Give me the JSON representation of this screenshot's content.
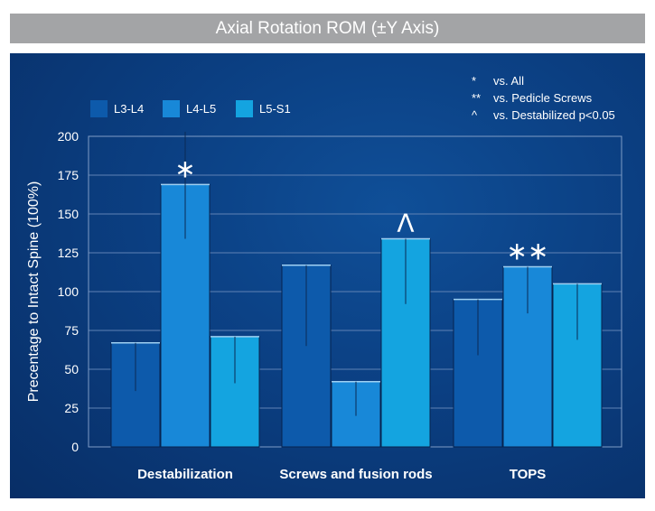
{
  "chart_data": {
    "type": "bar",
    "title": "Axial Rotation ROM (±Y Axis)",
    "ylabel": "Precentage to Intact Spine (100%)",
    "xlabel": "",
    "ylim": [
      0,
      200
    ],
    "yticks": [
      0,
      25,
      50,
      75,
      100,
      125,
      150,
      175,
      200
    ],
    "categories": [
      "Destabilization",
      "Screws and fusion rods",
      "TOPS"
    ],
    "series": [
      {
        "name": "L3-L4",
        "color": "#0d5aab",
        "values": [
          67,
          117,
          95
        ],
        "err_low": [
          36,
          65,
          59
        ],
        "err_high": [
          67,
          117,
          95
        ],
        "marks": [
          "",
          "",
          ""
        ]
      },
      {
        "name": "L4-L5",
        "color": "#1888d8",
        "values": [
          169,
          42,
          116
        ],
        "err_low": [
          134,
          20,
          86
        ],
        "err_high": [
          203,
          42,
          116
        ],
        "marks": [
          "*",
          "",
          "**"
        ]
      },
      {
        "name": "L5-S1",
        "color": "#14a4e0",
        "values": [
          71,
          134,
          105
        ],
        "err_low": [
          41,
          92,
          69
        ],
        "err_high": [
          71,
          134,
          105
        ],
        "marks": [
          "",
          "^",
          ""
        ]
      }
    ],
    "legend_position": "top-left",
    "grid": true,
    "notes": [
      {
        "symbol": "*",
        "text": "vs. All"
      },
      {
        "symbol": "**",
        "text": "vs. Pedicle Screws"
      },
      {
        "symbol": "^",
        "text": "vs. Destabilized p<0.05"
      }
    ]
  }
}
